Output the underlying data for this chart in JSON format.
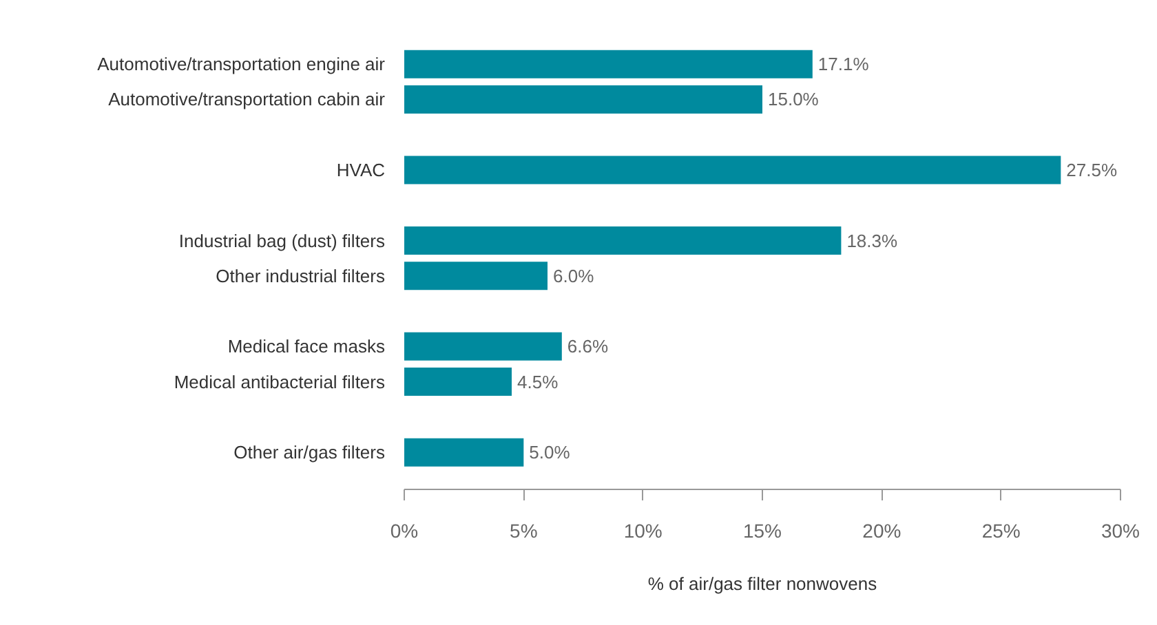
{
  "chart_data": {
    "type": "bar",
    "orientation": "horizontal",
    "xlabel": "% of air/gas filter nonwovens",
    "categories": [
      "Automotive/transportation engine air",
      "Automotive/transportation cabin air",
      null,
      "HVAC",
      null,
      "Industrial bag (dust) filters",
      "Other industrial filters",
      null,
      "Medical face masks",
      "Medical antibacterial filters",
      null,
      "Other air/gas filters"
    ],
    "values": [
      17.1,
      15.0,
      null,
      27.5,
      null,
      18.3,
      6.0,
      null,
      6.6,
      4.5,
      null,
      5.0
    ],
    "value_labels": [
      "17.1%",
      "15.0%",
      null,
      "27.5%",
      null,
      "18.3%",
      "6.0%",
      null,
      "6.6%",
      "4.5%",
      null,
      "5.0%"
    ],
    "color": "#008a9e",
    "xlim": [
      0,
      30
    ],
    "xticks": [
      {
        "value": 0,
        "label": "0%"
      },
      {
        "value": 5,
        "label": "5%"
      },
      {
        "value": 10,
        "label": "10%"
      },
      {
        "value": 15,
        "label": "15%"
      },
      {
        "value": 20,
        "label": "20%"
      },
      {
        "value": 25,
        "label": "25%"
      },
      {
        "value": 30,
        "label": "30%"
      }
    ],
    "grid": false
  }
}
